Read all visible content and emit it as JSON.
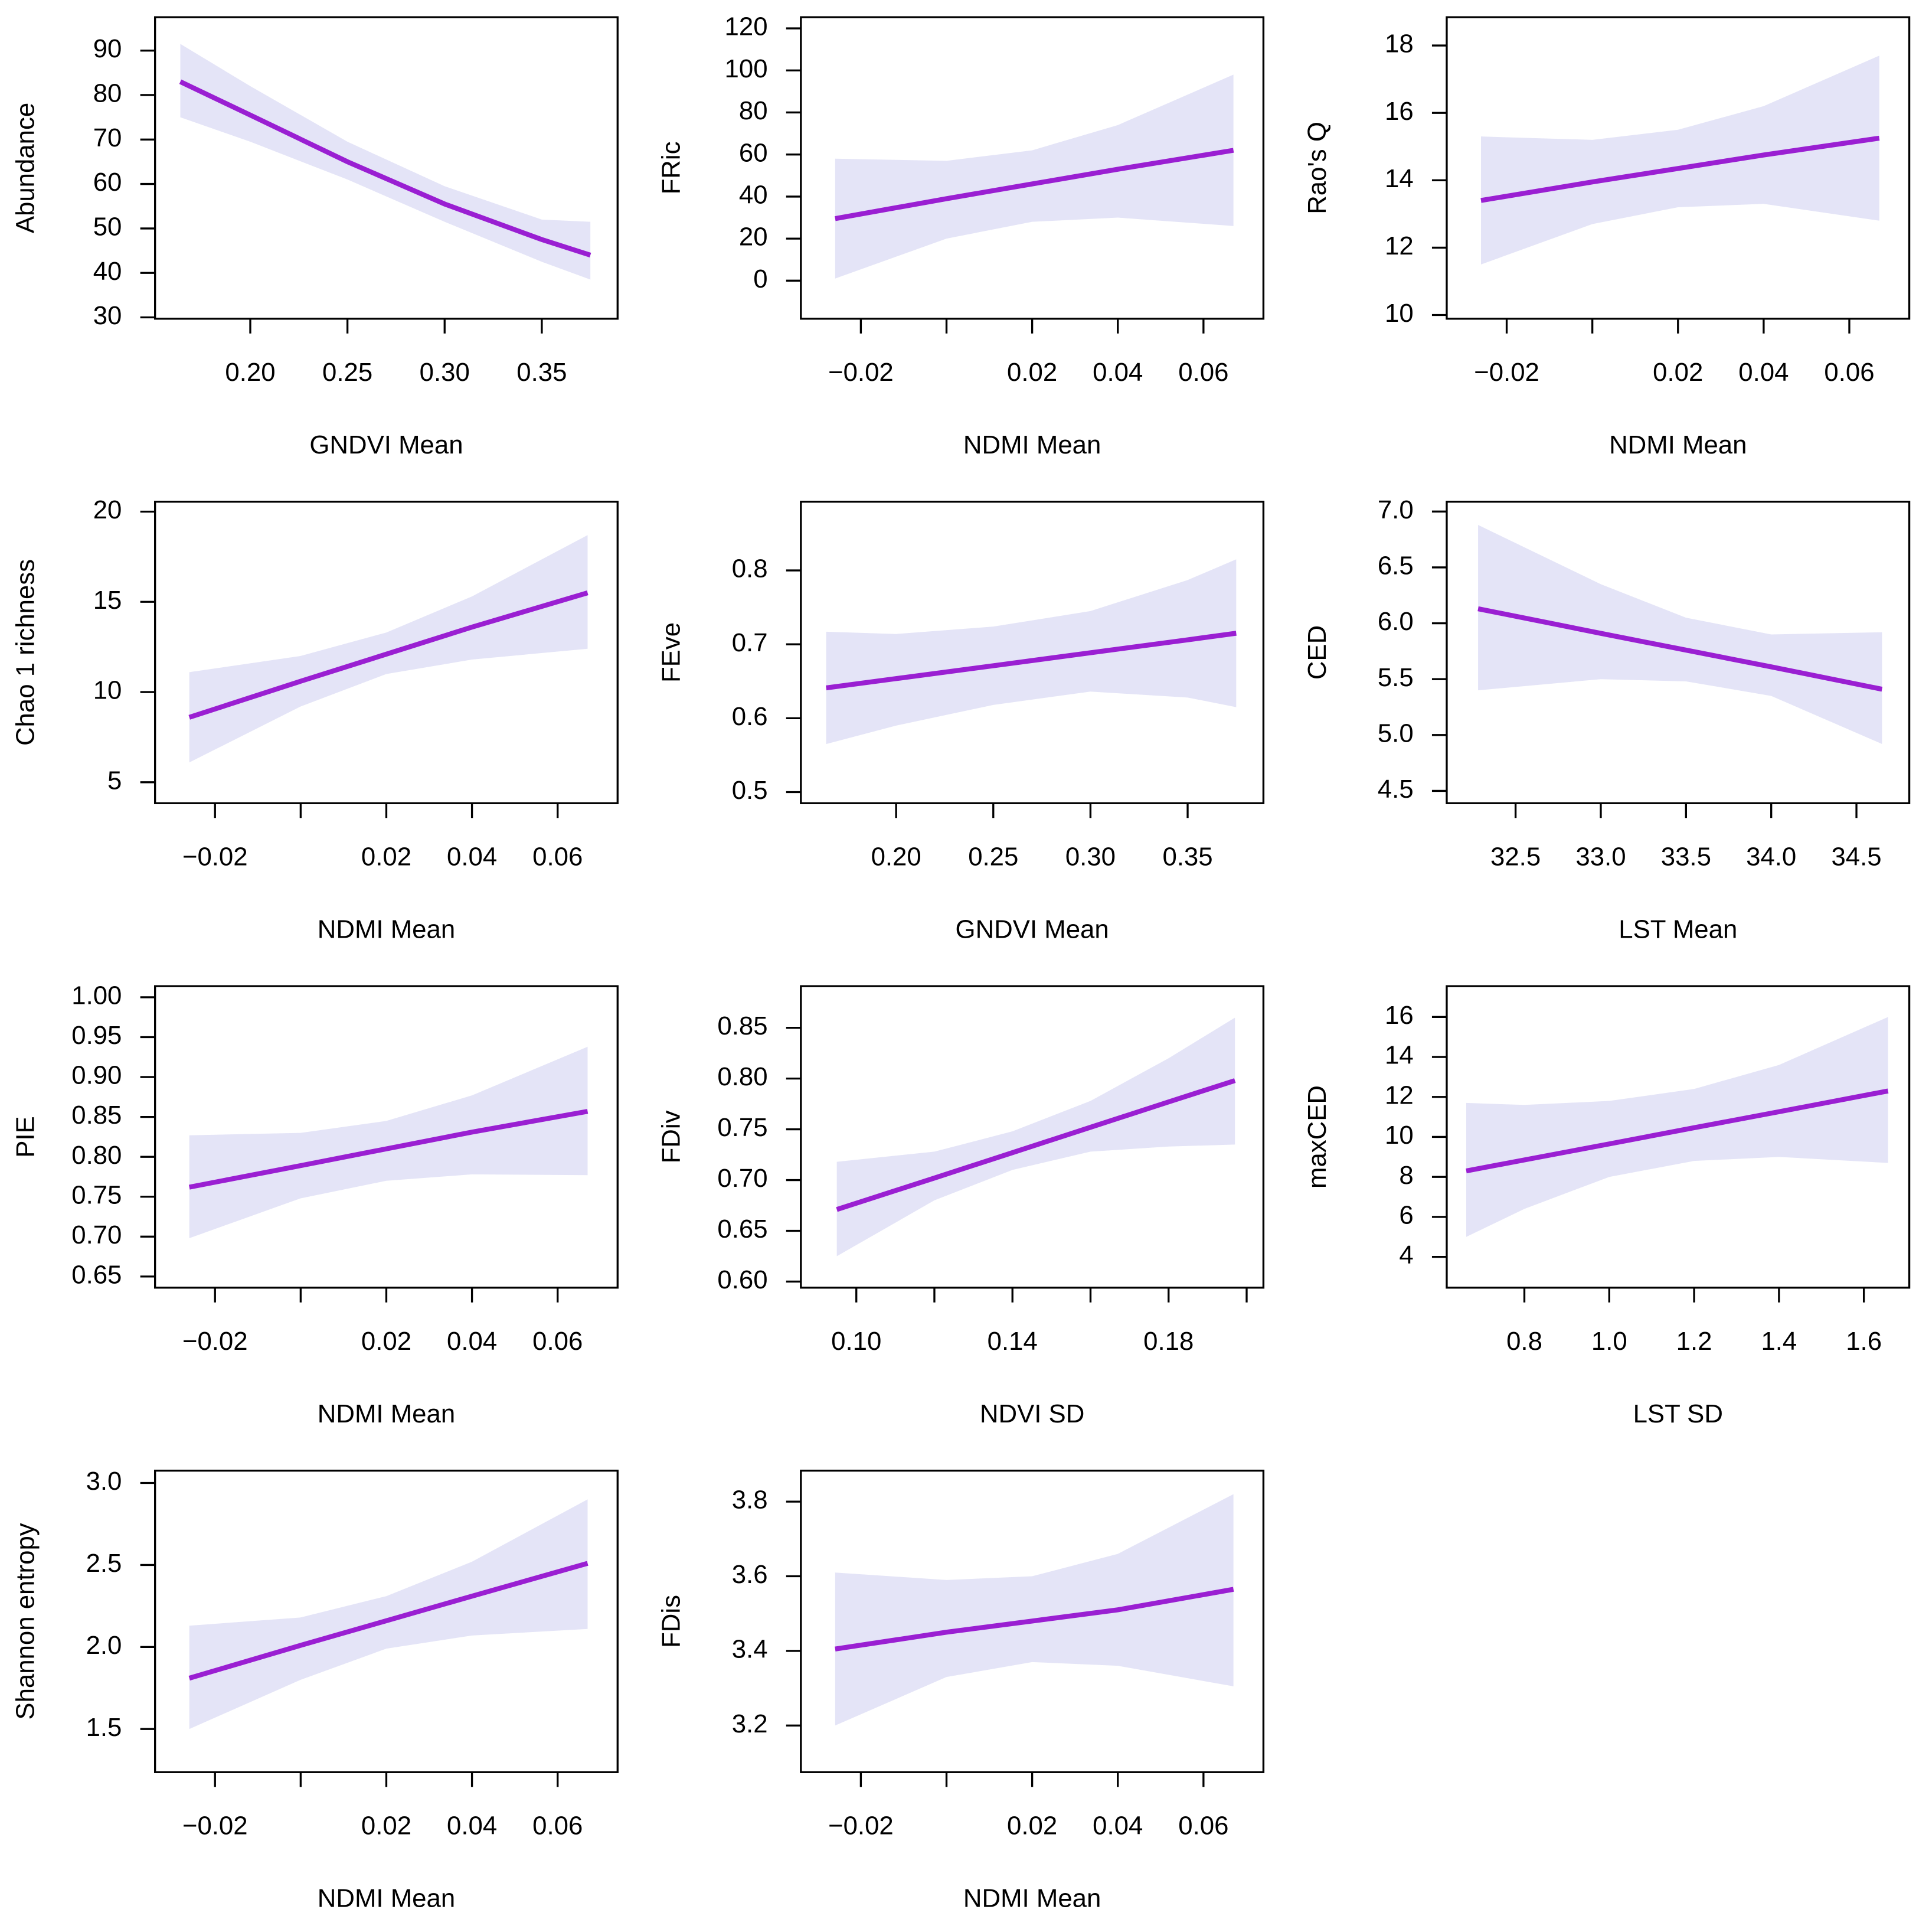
{
  "chart_data": [
    {
      "type": "line",
      "xlabel": "GNDVI Mean",
      "ylabel": "Abundance",
      "color": "#9a1fd2",
      "band_color": "#e4e4f7",
      "x": [
        0.164,
        0.2,
        0.25,
        0.3,
        0.35,
        0.375
      ],
      "values": [
        83,
        75.5,
        65,
        55.5,
        47.5,
        44
      ],
      "lower": [
        75,
        69.5,
        61,
        51.5,
        42.5,
        38.5
      ],
      "upper": [
        91.5,
        82,
        69.5,
        59.5,
        52,
        51.5
      ],
      "xlim": [
        0.151,
        0.389
      ],
      "ylim": [
        29.7,
        97.5
      ],
      "xticks": [
        {
          "value": 0.2,
          "label": "0.20"
        },
        {
          "value": 0.25,
          "label": "0.25"
        },
        {
          "value": 0.3,
          "label": "0.30"
        },
        {
          "value": 0.35,
          "label": "0.35"
        }
      ],
      "yticks": [
        30,
        40,
        50,
        60,
        70,
        80,
        90
      ]
    },
    {
      "type": "line",
      "xlabel": "NDMI Mean",
      "ylabel": "FRic",
      "color": "#9a1fd2",
      "band_color": "#e4e4f7",
      "x": [
        -0.026,
        0,
        0.02,
        0.04,
        0.067
      ],
      "values": [
        29.5,
        39,
        46,
        53,
        62
      ],
      "lower": [
        1,
        20,
        28,
        30,
        26
      ],
      "upper": [
        58,
        57,
        62,
        74,
        98
      ],
      "xlim": [
        -0.034,
        0.074
      ],
      "ylim": [
        -18.1,
        125.3
      ],
      "xticks": [
        {
          "value": -0.02,
          "label": "−0.02"
        },
        {
          "value": 0,
          "label": null
        },
        {
          "value": 0.02,
          "label": "0.02"
        },
        {
          "value": 0.04,
          "label": "0.04"
        },
        {
          "value": 0.06,
          "label": "0.06"
        }
      ],
      "yticks": [
        0,
        20,
        40,
        60,
        80,
        100,
        120
      ]
    },
    {
      "type": "line",
      "xlabel": "NDMI Mean",
      "ylabel": "Rao's Q",
      "color": "#9a1fd2",
      "band_color": "#e4e4f7",
      "x": [
        -0.026,
        0,
        0.02,
        0.04,
        0.067
      ],
      "values": [
        13.4,
        13.95,
        14.35,
        14.75,
        15.25
      ],
      "lower": [
        11.5,
        12.7,
        13.2,
        13.3,
        12.8
      ],
      "upper": [
        15.3,
        15.2,
        15.5,
        16.2,
        17.7
      ],
      "xlim": [
        -0.034,
        0.074
      ],
      "ylim": [
        9.89,
        18.84
      ],
      "xticks": [
        {
          "value": -0.02,
          "label": "−0.02"
        },
        {
          "value": 0,
          "label": null
        },
        {
          "value": 0.02,
          "label": "0.02"
        },
        {
          "value": 0.04,
          "label": "0.04"
        },
        {
          "value": 0.06,
          "label": "0.06"
        }
      ],
      "yticks": [
        10,
        12,
        14,
        16,
        18
      ]
    },
    {
      "type": "line",
      "xlabel": "NDMI Mean",
      "ylabel": "Chao 1 richness",
      "color": "#9a1fd2",
      "band_color": "#e4e4f7",
      "x": [
        -0.026,
        0,
        0.02,
        0.04,
        0.067
      ],
      "values": [
        8.6,
        10.6,
        12.1,
        13.6,
        15.5
      ],
      "lower": [
        6.1,
        9.2,
        11.0,
        11.8,
        12.4
      ],
      "upper": [
        11.1,
        12.0,
        13.3,
        15.3,
        18.7
      ],
      "xlim": [
        -0.034,
        0.074
      ],
      "ylim": [
        3.84,
        20.55
      ],
      "xticks": [
        {
          "value": -0.02,
          "label": "−0.02"
        },
        {
          "value": 0,
          "label": null
        },
        {
          "value": 0.02,
          "label": "0.02"
        },
        {
          "value": 0.04,
          "label": "0.04"
        },
        {
          "value": 0.06,
          "label": "0.06"
        }
      ],
      "yticks": [
        5,
        10,
        15,
        20
      ]
    },
    {
      "type": "line",
      "xlabel": "GNDVI Mean",
      "ylabel": "FEve",
      "color": "#9a1fd2",
      "band_color": "#e4e4f7",
      "x": [
        0.164,
        0.2,
        0.25,
        0.3,
        0.35,
        0.375
      ],
      "values": [
        0.641,
        0.6536,
        0.671,
        0.6886,
        0.7061,
        0.715
      ],
      "lower": [
        0.565,
        0.59,
        0.618,
        0.636,
        0.628,
        0.615
      ],
      "upper": [
        0.717,
        0.714,
        0.724,
        0.745,
        0.787,
        0.815
      ],
      "xlim": [
        0.151,
        0.389
      ],
      "ylim": [
        0.485,
        0.893
      ],
      "xticks": [
        {
          "value": 0.2,
          "label": "0.20"
        },
        {
          "value": 0.25,
          "label": "0.25"
        },
        {
          "value": 0.3,
          "label": "0.30"
        },
        {
          "value": 0.35,
          "label": "0.35"
        }
      ],
      "yticks": [
        0.5,
        0.6,
        0.7,
        0.8
      ]
    },
    {
      "type": "line",
      "xlabel": "LST Mean",
      "ylabel": "CED",
      "color": "#9a1fd2",
      "band_color": "#e4e4f7",
      "x": [
        32.28,
        33,
        33.5,
        34,
        34.65
      ],
      "values": [
        6.13,
        5.91,
        5.76,
        5.61,
        5.41
      ],
      "lower": [
        5.4,
        5.5,
        5.48,
        5.35,
        4.92
      ],
      "upper": [
        6.88,
        6.35,
        6.05,
        5.9,
        5.92
      ],
      "xlim": [
        32.096,
        34.81
      ],
      "ylim": [
        4.39,
        7.088
      ],
      "xticks": [
        32.5,
        {
          "value": 33,
          "label": "33.0"
        },
        33.5,
        {
          "value": 34,
          "label": "34.0"
        },
        34.5
      ],
      "yticks": [
        4.5,
        {
          "value": 5,
          "label": "5.0"
        },
        5.5,
        {
          "value": 6,
          "label": "6.0"
        },
        6.5,
        {
          "value": 7,
          "label": "7.0"
        }
      ]
    },
    {
      "type": "line",
      "xlabel": "NDMI Mean",
      "ylabel": "PIE",
      "color": "#9a1fd2",
      "band_color": "#e4e4f7",
      "x": [
        -0.026,
        0,
        0.02,
        0.04,
        0.067
      ],
      "values": [
        0.762,
        0.789,
        0.81,
        0.831,
        0.857
      ],
      "lower": [
        0.698,
        0.748,
        0.77,
        0.778,
        0.777
      ],
      "upper": [
        0.827,
        0.83,
        0.845,
        0.877,
        0.938
      ],
      "xlim": [
        -0.034,
        0.074
      ],
      "ylim": [
        0.636,
        1.0139
      ],
      "xticks": [
        {
          "value": -0.02,
          "label": "−0.02"
        },
        {
          "value": 0,
          "label": null
        },
        {
          "value": 0.02,
          "label": "0.02"
        },
        {
          "value": 0.04,
          "label": "0.04"
        },
        {
          "value": 0.06,
          "label": "0.06"
        }
      ],
      "yticks": [
        0.65,
        {
          "value": 0.7,
          "label": "0.70"
        },
        0.75,
        {
          "value": 0.8,
          "label": "0.80"
        },
        0.85,
        {
          "value": 0.9,
          "label": "0.90"
        },
        0.95,
        {
          "value": 1,
          "label": "1.00"
        }
      ]
    },
    {
      "type": "line",
      "xlabel": "NDVI SD",
      "ylabel": "FDiv",
      "color": "#9a1fd2",
      "band_color": "#e4e4f7",
      "x": [
        0.095,
        0.12,
        0.14,
        0.16,
        0.18,
        0.197
      ],
      "values": [
        0.671,
        0.702,
        0.727,
        0.752,
        0.777,
        0.798
      ],
      "lower": [
        0.625,
        0.68,
        0.71,
        0.728,
        0.733,
        0.735
      ],
      "upper": [
        0.718,
        0.728,
        0.748,
        0.778,
        0.82,
        0.86
      ],
      "xlim": [
        0.0858,
        0.2043
      ],
      "ylim": [
        0.594,
        0.891
      ],
      "xticks": [
        {
          "value": 0.1,
          "label": "0.10"
        },
        {
          "value": 0.12,
          "label": null
        },
        0.14,
        {
          "value": 0.16,
          "label": null
        },
        0.18,
        {
          "value": 0.2,
          "label": null
        }
      ],
      "yticks": [
        {
          "value": 0.6,
          "label": "0.60"
        },
        0.65,
        {
          "value": 0.7,
          "label": "0.70"
        },
        0.75,
        {
          "value": 0.8,
          "label": "0.80"
        },
        0.85
      ]
    },
    {
      "type": "line",
      "xlabel": "LST SD",
      "ylabel": "maxCED",
      "color": "#9a1fd2",
      "band_color": "#e4e4f7",
      "x": [
        0.663,
        0.8,
        1.0,
        1.2,
        1.4,
        1.657
      ],
      "values": [
        8.3,
        8.85,
        9.65,
        10.46,
        11.26,
        12.3
      ],
      "lower": [
        5.0,
        6.4,
        8.0,
        8.8,
        9.0,
        8.7
      ],
      "upper": [
        11.7,
        11.6,
        11.8,
        12.4,
        13.6,
        16.0
      ],
      "xlim": [
        0.617,
        1.707
      ],
      "ylim": [
        2.46,
        17.54
      ],
      "xticks": [
        0.8,
        {
          "value": 1,
          "label": "1.0"
        },
        1.2,
        1.4,
        1.6
      ],
      "yticks": [
        4,
        6,
        8,
        10,
        12,
        14,
        16
      ]
    },
    {
      "type": "line",
      "xlabel": "NDMI Mean",
      "ylabel": "Shannon entropy",
      "color": "#9a1fd2",
      "band_color": "#e4e4f7",
      "x": [
        -0.026,
        0,
        0.02,
        0.04,
        0.067
      ],
      "values": [
        1.81,
        2.01,
        2.16,
        2.31,
        2.51
      ],
      "lower": [
        1.5,
        1.8,
        1.99,
        2.07,
        2.11
      ],
      "upper": [
        2.13,
        2.18,
        2.31,
        2.52,
        2.9
      ],
      "xlim": [
        -0.034,
        0.074
      ],
      "ylim": [
        1.237,
        3.075
      ],
      "xticks": [
        {
          "value": -0.02,
          "label": "−0.02"
        },
        {
          "value": 0,
          "label": null
        },
        {
          "value": 0.02,
          "label": "0.02"
        },
        {
          "value": 0.04,
          "label": "0.04"
        },
        {
          "value": 0.06,
          "label": "0.06"
        }
      ],
      "yticks": [
        1.5,
        {
          "value": 2,
          "label": "2.0"
        },
        2.5,
        {
          "value": 3,
          "label": "3.0"
        }
      ]
    },
    {
      "type": "line",
      "xlabel": "NDMI Mean",
      "ylabel": "FDis",
      "color": "#9a1fd2",
      "band_color": "#e4e4f7",
      "x": [
        -0.026,
        0,
        0.02,
        0.04,
        0.067
      ],
      "values": [
        3.405,
        3.45,
        3.48,
        3.51,
        3.565
      ],
      "lower": [
        3.2,
        3.33,
        3.37,
        3.36,
        3.305
      ],
      "upper": [
        3.61,
        3.59,
        3.6,
        3.66,
        3.82
      ],
      "xlim": [
        -0.034,
        0.074
      ],
      "ylim": [
        3.075,
        3.883
      ],
      "xticks": [
        {
          "value": -0.02,
          "label": "−0.02"
        },
        {
          "value": 0,
          "label": null
        },
        {
          "value": 0.02,
          "label": "0.02"
        },
        {
          "value": 0.04,
          "label": "0.04"
        },
        {
          "value": 0.06,
          "label": "0.06"
        }
      ],
      "yticks": [
        3.2,
        3.4,
        3.6,
        3.8
      ]
    }
  ]
}
